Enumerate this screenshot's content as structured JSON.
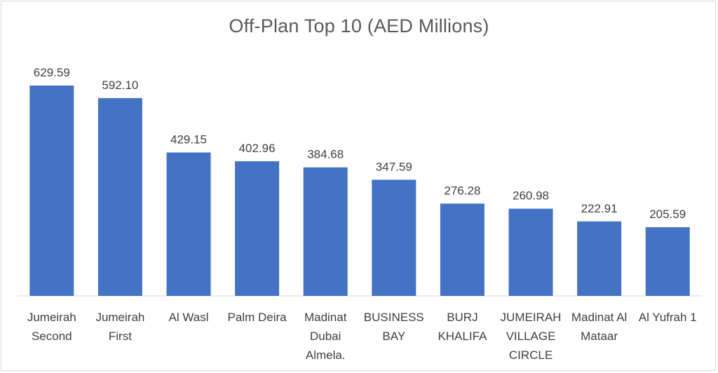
{
  "chart_data": {
    "type": "bar",
    "title": "Off-Plan Top 10 (AED Millions)",
    "categories": [
      [
        "Jumeirah",
        "Second"
      ],
      [
        "Jumeirah",
        "First"
      ],
      [
        "Al Wasl"
      ],
      [
        "Palm Deira"
      ],
      [
        "Madinat",
        "Dubai",
        "Almela."
      ],
      [
        "BUSINESS",
        "BAY"
      ],
      [
        "BURJ",
        "KHALIFA"
      ],
      [
        "JUMEIRAH",
        "VILLAGE",
        "CIRCLE"
      ],
      [
        "Madinat Al",
        "Mataar"
      ],
      [
        "Al Yufrah 1"
      ]
    ],
    "values": [
      629.59,
      592.1,
      429.15,
      402.96,
      384.68,
      347.59,
      276.28,
      260.98,
      222.91,
      205.59
    ],
    "value_labels": [
      "629.59",
      "592.10",
      "429.15",
      "402.96",
      "384.68",
      "347.59",
      "276.28",
      "260.98",
      "222.91",
      "205.59"
    ],
    "ylim": [
      0,
      700
    ],
    "bar_color": "#4472c4",
    "axis_color": "#d9d9d9",
    "grid": false,
    "legend": "none"
  }
}
